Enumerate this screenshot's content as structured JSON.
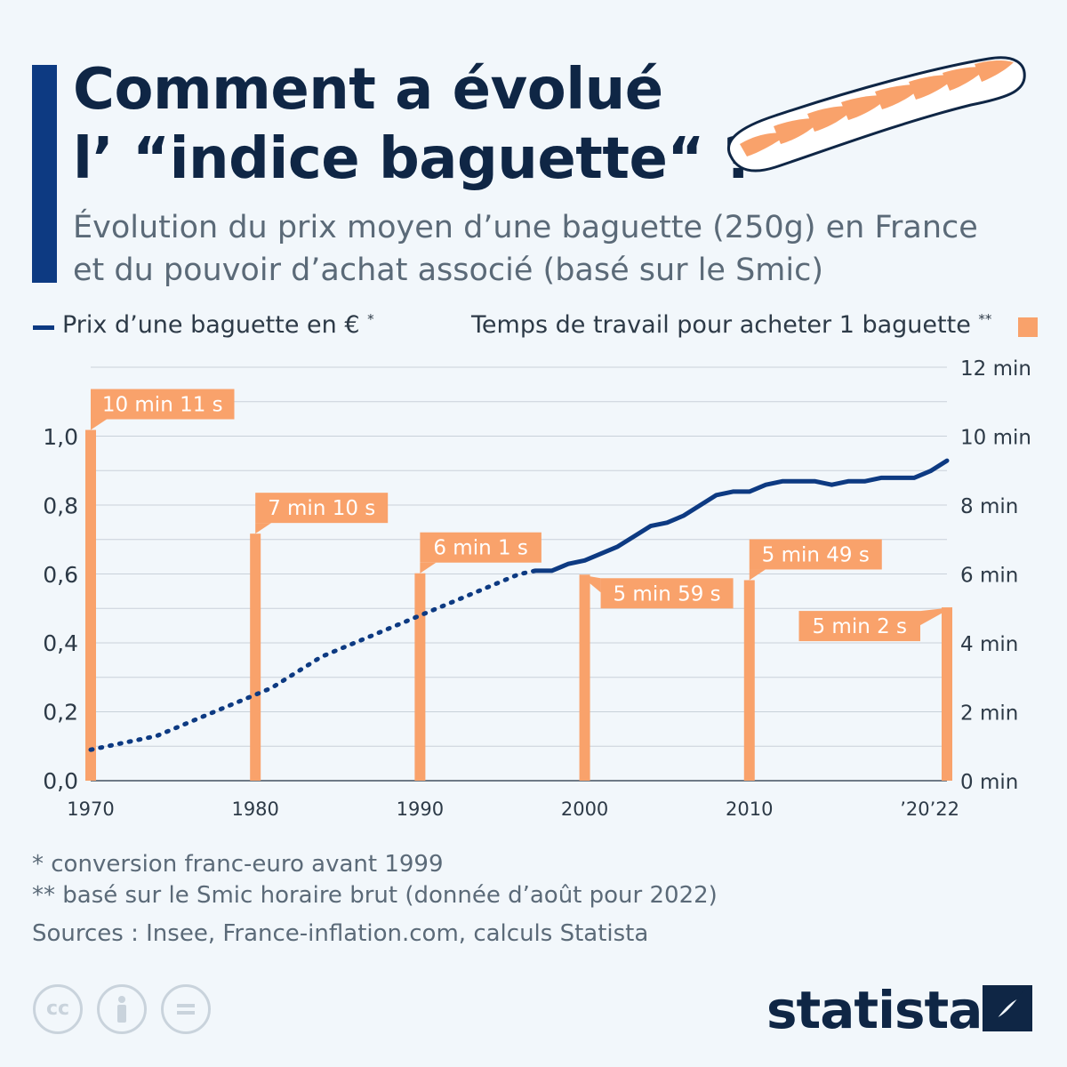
{
  "header": {
    "title_line1": "Comment a évolué",
    "title_line2": "l’ “indice baguette“ ?",
    "subtitle_line1": "Évolution du prix moyen d’une baguette (250g) en France",
    "subtitle_line2": "et du pouvoir d’achat associé (basé sur le Smic)"
  },
  "legend": {
    "price_label": "Prix d’une baguette en €",
    "price_mark": "*",
    "time_label": "Temps de travail pour acheter 1 baguette",
    "time_mark": "**"
  },
  "colors": {
    "navy": "#0d3a82",
    "orange": "#f9a26b",
    "grid": "#c9d1da"
  },
  "chart_data": {
    "type": "bar+line",
    "x_ticks": [
      "1970",
      "1980",
      "1990",
      "2000",
      "2010",
      "’20’22"
    ],
    "left_axis": {
      "ylim": [
        0,
        1.0
      ],
      "ticks": [
        "0,0",
        "0,2",
        "0,4",
        "0,6",
        "0,8",
        "1,0"
      ]
    },
    "right_axis": {
      "ylim": [
        0,
        12
      ],
      "ticks": [
        "0 min",
        "2 min",
        "4 min",
        "6 min",
        "8 min",
        "10 min",
        "12 min"
      ]
    },
    "time_series": {
      "points": [
        {
          "year": 1970,
          "minutes": 10.18,
          "label": "10 min 11 s"
        },
        {
          "year": 1980,
          "minutes": 7.17,
          "label": "7 min 10 s"
        },
        {
          "year": 1990,
          "minutes": 6.02,
          "label": "6 min 1 s"
        },
        {
          "year": 2000,
          "minutes": 5.98,
          "label": "5 min 59 s"
        },
        {
          "year": 2010,
          "minutes": 5.82,
          "label": "5 min 49 s"
        },
        {
          "year": 2022,
          "minutes": 5.03,
          "label": "5 min 2 s"
        }
      ]
    },
    "price_series": {
      "x": [
        1970,
        1971,
        1972,
        1973,
        1974,
        1975,
        1976,
        1977,
        1978,
        1979,
        1980,
        1981,
        1982,
        1983,
        1984,
        1985,
        1986,
        1987,
        1988,
        1989,
        1990,
        1991,
        1992,
        1993,
        1994,
        1995,
        1996,
        1997,
        1998,
        1999,
        2000,
        2001,
        2002,
        2003,
        2004,
        2005,
        2006,
        2007,
        2008,
        2009,
        2010,
        2011,
        2012,
        2013,
        2014,
        2015,
        2016,
        2017,
        2018,
        2019,
        2020,
        2021,
        2022
      ],
      "y": [
        0.09,
        0.1,
        0.11,
        0.12,
        0.13,
        0.15,
        0.17,
        0.19,
        0.21,
        0.23,
        0.25,
        0.27,
        0.3,
        0.33,
        0.36,
        0.38,
        0.4,
        0.42,
        0.44,
        0.46,
        0.48,
        0.5,
        0.52,
        0.54,
        0.56,
        0.58,
        0.6,
        0.61,
        0.61,
        0.63,
        0.64,
        0.66,
        0.68,
        0.71,
        0.74,
        0.75,
        0.77,
        0.8,
        0.83,
        0.84,
        0.84,
        0.86,
        0.87,
        0.87,
        0.87,
        0.86,
        0.87,
        0.87,
        0.88,
        0.88,
        0.88,
        0.9,
        0.93
      ],
      "dotted_until": 1997
    }
  },
  "footer": {
    "note1": "*   conversion franc-euro avant 1999",
    "note2": "** basé sur le Smic horaire brut (donnée d’août pour 2022)",
    "sources": "Sources : Insee, France-inflation.com, calculs Statista",
    "brand": "statista"
  },
  "license_icons": [
    "creative-commons-icon",
    "attribution-icon",
    "no-derivatives-icon"
  ]
}
